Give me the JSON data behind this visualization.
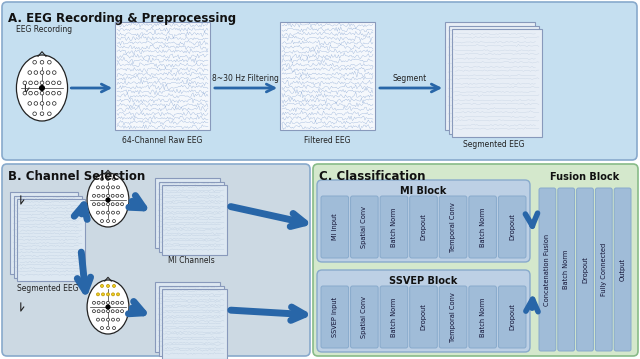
{
  "section_A_label": "A. EEG Recording & Preprocessing",
  "section_B_label": "B. Channel Selection",
  "section_C_label": "C. Classification",
  "section_A_bg": "#c5dff0",
  "section_B_bg": "#ccd9e3",
  "section_C_bg": "#d4e8cc",
  "block_bg": "#b8cfe0",
  "bar_color": "#a0bcd8",
  "bar_edge": "#88aacc",
  "arrow_color": "#2866a8",
  "eeg_box_bg": "#f5f8fc",
  "eeg_box_edge": "#8899bb",
  "page_bg": "#e8eef6",
  "page_edge": "#8899bb",
  "mi_blocks": [
    "MI Input",
    "Spatial Conv",
    "Batch Norm",
    "Dropout",
    "Temporal Conv",
    "Batch Norm",
    "Dropout"
  ],
  "ssvep_blocks": [
    "SSVEP Input",
    "Spatial Conv",
    "Batch Norm",
    "Dropout",
    "Temporal Conv",
    "Batch Norm",
    "Dropout"
  ],
  "fusion_blocks": [
    "Concatenation Fusion",
    "Batch Norm",
    "Dropout",
    "Fully Connected",
    "Output"
  ],
  "mi_block_title": "MI Block",
  "ssvep_block_title": "SSVEP Block",
  "fusion_block_title": "Fusion Block"
}
